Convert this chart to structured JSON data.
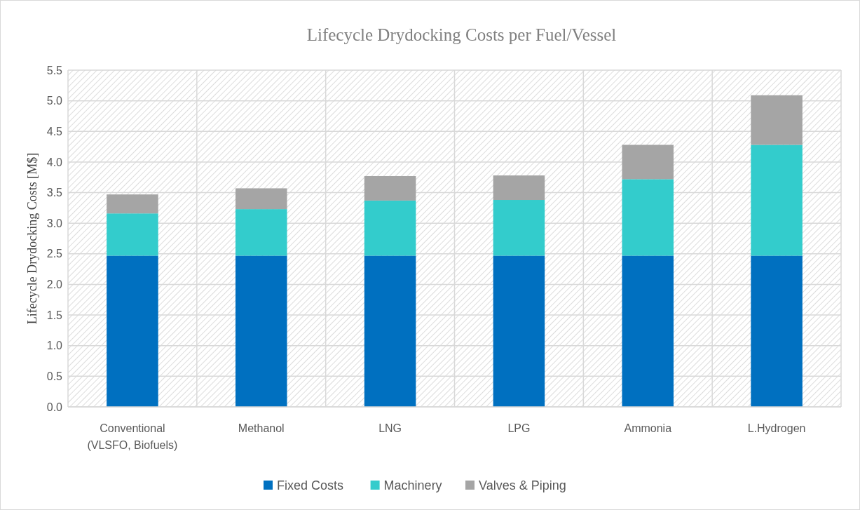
{
  "chart_data": {
    "type": "bar",
    "title": "Lifecycle Drydocking Costs per Fuel/Vessel",
    "ylabel": "Lifecycle Drydocking Costs [M$]",
    "categories": [
      "Conventional\n(VLSFO, Biofuels)",
      "Methanol",
      "LNG",
      "LPG",
      "Ammonia",
      "L.Hydrogen"
    ],
    "stacked": true,
    "series": [
      {
        "name": "Fixed Costs",
        "color": "#0070c0",
        "values": [
          2.47,
          2.47,
          2.47,
          2.47,
          2.47,
          2.47
        ]
      },
      {
        "name": "Machinery",
        "color": "#33cccc",
        "values": [
          0.69,
          0.76,
          0.9,
          0.91,
          1.25,
          1.81
        ]
      },
      {
        "name": "Valves & Piping",
        "color": "#a5a5a5",
        "values": [
          0.31,
          0.34,
          0.4,
          0.4,
          0.56,
          0.81
        ]
      }
    ],
    "ylim": [
      0,
      5.5
    ],
    "yticks": [
      {
        "value": 0,
        "label": "0.0"
      },
      {
        "value": 0.5,
        "label": "0.5"
      },
      {
        "value": 1,
        "label": "1.0"
      },
      {
        "value": 1.5,
        "label": "1.5"
      },
      {
        "value": 2,
        "label": "2.0"
      },
      {
        "value": 2.5,
        "label": "2.5"
      },
      {
        "value": 3,
        "label": "3.0"
      },
      {
        "value": 3.5,
        "label": "3.5"
      },
      {
        "value": 4,
        "label": "4.0"
      },
      {
        "value": 4.5,
        "label": "4.5"
      },
      {
        "value": 5,
        "label": "5.0"
      },
      {
        "value": 5.5,
        "label": "5.5"
      }
    ],
    "grid": true,
    "legend": "bottom"
  }
}
